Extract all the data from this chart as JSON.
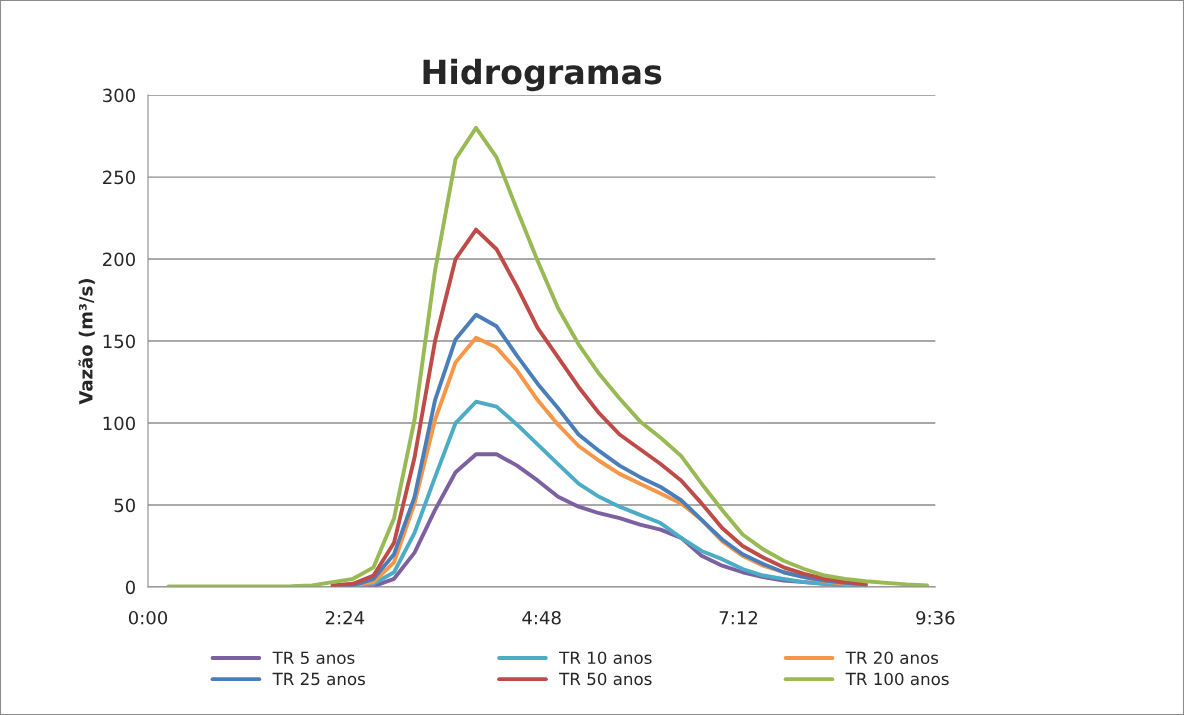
{
  "chart_data": {
    "type": "line",
    "title": "Hidrogramas",
    "ylabel": "Vazão (m³/s)",
    "x": [
      0.25,
      0.5,
      0.75,
      1.0,
      1.25,
      1.5,
      1.75,
      2.0,
      2.25,
      2.5,
      2.75,
      3.0,
      3.25,
      3.5,
      3.75,
      4.0,
      4.25,
      4.5,
      4.75,
      5.0,
      5.25,
      5.5,
      5.75,
      6.0,
      6.25,
      6.5,
      6.75,
      7.0,
      7.25,
      7.5,
      7.75,
      8.0,
      8.25,
      8.5,
      8.75,
      9.0,
      9.25,
      9.5
    ],
    "xlim": [
      0,
      9.6
    ],
    "xticks": [
      {
        "value": 0,
        "label": "0:00"
      },
      {
        "value": 2.4,
        "label": "2:24"
      },
      {
        "value": 4.8,
        "label": "4:48"
      },
      {
        "value": 7.2,
        "label": "7:12"
      },
      {
        "value": 9.6,
        "label": "9:36"
      }
    ],
    "ylim": [
      0,
      300
    ],
    "yticks": [
      0,
      50,
      100,
      150,
      200,
      250,
      300
    ],
    "grid": "y",
    "legend": "bottom",
    "line_style": "solid",
    "marker": "none",
    "series": [
      {
        "name": "TR 5 anos",
        "color": "#7d60a0",
        "values": [
          null,
          null,
          null,
          null,
          null,
          null,
          null,
          null,
          0,
          0,
          0.5,
          5,
          21,
          47,
          70,
          81,
          81,
          74,
          65,
          55,
          49,
          45,
          42,
          38,
          35,
          30,
          19,
          13,
          9,
          6,
          4,
          3,
          2,
          1.2,
          0.8,
          null,
          null,
          null
        ]
      },
      {
        "name": "TR 10 anos",
        "color": "#4bacc6",
        "values": [
          null,
          null,
          null,
          null,
          null,
          null,
          null,
          null,
          0,
          1,
          2,
          9,
          33,
          67,
          100,
          113,
          110,
          99,
          87,
          75,
          63,
          55,
          49,
          44,
          39,
          30,
          22,
          17,
          11,
          7,
          5,
          3,
          2,
          1.2,
          0.8,
          null,
          null,
          null
        ]
      },
      {
        "name": "TR 20 anos",
        "color": "#f79646",
        "values": [
          null,
          null,
          null,
          null,
          null,
          null,
          null,
          null,
          0,
          1,
          3,
          15,
          51,
          102,
          137,
          152,
          146,
          132,
          114,
          99,
          86,
          77,
          69,
          63,
          57,
          51,
          41,
          28,
          19,
          13,
          9,
          6,
          3.5,
          2,
          1.5,
          null,
          null,
          null
        ]
      },
      {
        "name": "TR 25 anos",
        "color": "#4a7ebb",
        "values": [
          null,
          null,
          null,
          null,
          null,
          null,
          null,
          null,
          0,
          1,
          5,
          20,
          55,
          114,
          151,
          166,
          159,
          141,
          124,
          109,
          93,
          83,
          74,
          67,
          61,
          53,
          41,
          29,
          20,
          14,
          9,
          6,
          4,
          2.5,
          1.5,
          null,
          null,
          null
        ]
      },
      {
        "name": "TR 50 anos",
        "color": "#be4b48",
        "values": [
          null,
          null,
          null,
          null,
          null,
          null,
          null,
          null,
          1,
          2,
          7,
          27,
          79,
          150,
          200,
          218,
          206,
          183,
          158,
          140,
          122,
          106,
          93,
          84,
          75,
          65,
          51,
          36,
          25,
          18,
          12,
          8,
          5,
          3,
          2,
          null,
          null,
          null
        ]
      },
      {
        "name": "TR 100 anos",
        "color": "#98b954",
        "values": [
          0.3,
          0.3,
          0.3,
          0.3,
          0.3,
          0.3,
          0.5,
          1,
          3,
          5,
          12,
          42,
          102,
          193,
          261,
          280,
          262,
          230,
          199,
          170,
          148,
          130,
          115,
          101,
          91,
          80,
          63,
          47,
          32,
          23,
          16,
          11,
          7,
          5,
          3.5,
          2.5,
          1.6,
          1
        ]
      }
    ]
  }
}
